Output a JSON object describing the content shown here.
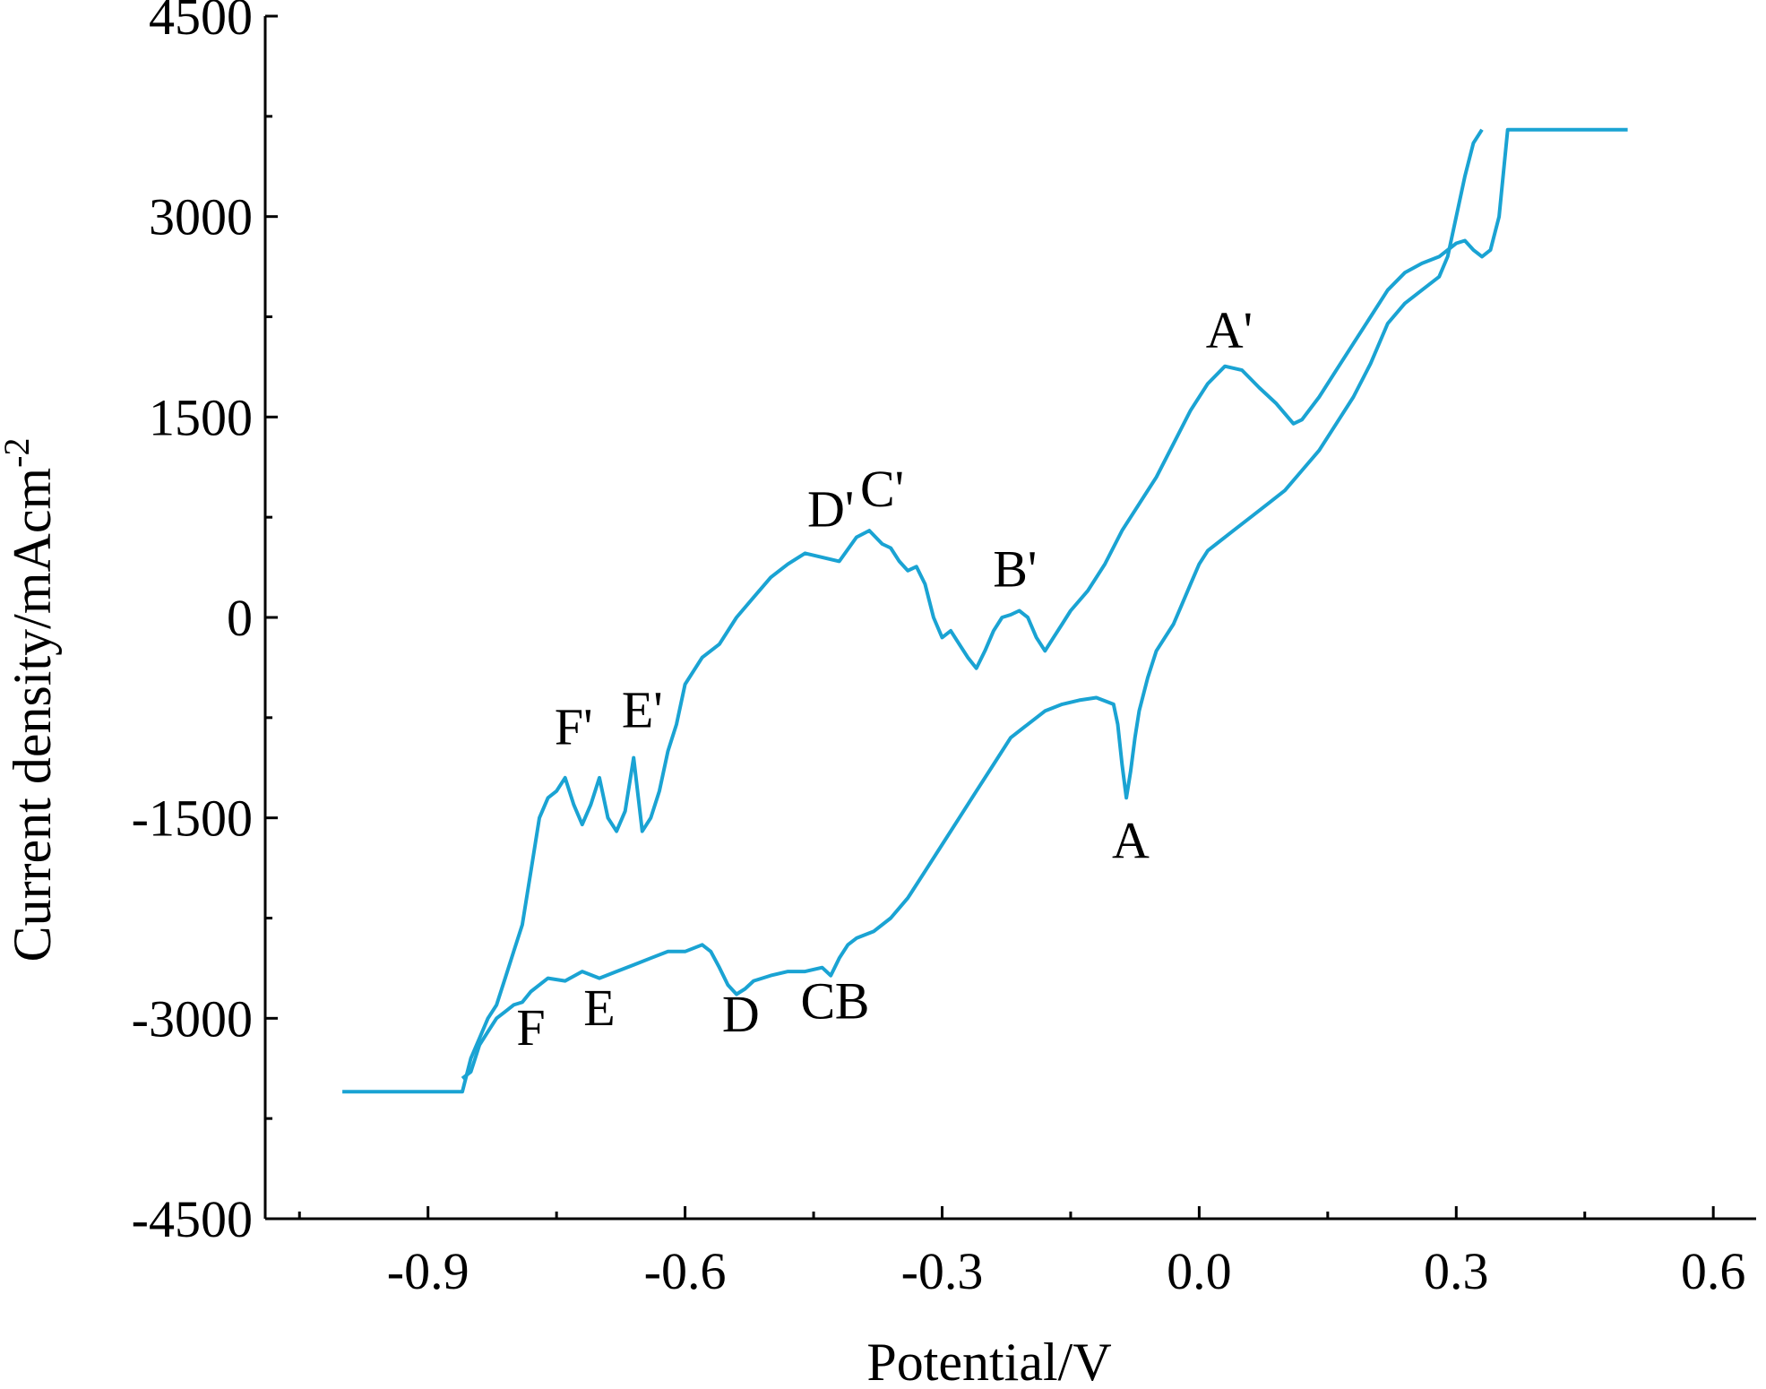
{
  "chart_data": {
    "type": "line",
    "title": "",
    "xlabel": "Potential/V",
    "ylabel": "Current density/mAcm",
    "ylabel_superscript": "-2",
    "xlim": [
      -1.09,
      0.65
    ],
    "ylim": [
      -4500,
      4500
    ],
    "x_ticks": [
      -0.9,
      -0.6,
      -0.3,
      0.0,
      0.3,
      0.6
    ],
    "x_tick_labels": [
      "-0.9",
      "-0.6",
      "-0.3",
      "0.0",
      "0.3",
      "0.6"
    ],
    "y_ticks": [
      -4500,
      -3000,
      -1500,
      0,
      1500,
      3000,
      4500
    ],
    "y_tick_labels": [
      "-4500",
      "-3000",
      "-1500",
      "0",
      "1500",
      "3000",
      "4500"
    ],
    "grid": false,
    "line_color": "#1aa3d3",
    "series": [
      {
        "x": [
          -1.0,
          -0.86,
          -0.85,
          -0.84,
          -0.83,
          -0.82,
          -0.81,
          -0.8,
          -0.79,
          -0.78,
          -0.77,
          -0.76,
          -0.75,
          -0.74,
          -0.73,
          -0.72,
          -0.71,
          -0.7,
          -0.69,
          -0.68,
          -0.67,
          -0.66,
          -0.65,
          -0.64,
          -0.63,
          -0.62,
          -0.61,
          -0.6,
          -0.58,
          -0.56,
          -0.54,
          -0.52,
          -0.5,
          -0.48,
          -0.46,
          -0.44,
          -0.42,
          -0.4,
          -0.385,
          -0.37,
          -0.36,
          -0.35,
          -0.34,
          -0.33,
          -0.32,
          -0.31,
          -0.3,
          -0.29,
          -0.28,
          -0.27,
          -0.26,
          -0.25,
          -0.24,
          -0.23,
          -0.22,
          -0.21,
          -0.2,
          -0.19,
          -0.18,
          -0.17,
          -0.16,
          -0.15,
          -0.13,
          -0.11,
          -0.09,
          -0.07,
          -0.05,
          -0.03,
          -0.01,
          0.01,
          0.03,
          0.05,
          0.07,
          0.09,
          0.11,
          0.12,
          0.14,
          0.16,
          0.18,
          0.2,
          0.22,
          0.24,
          0.26,
          0.28,
          0.3,
          0.31,
          0.32,
          0.33,
          0.34,
          0.35,
          0.36,
          0.38,
          0.4,
          0.45,
          0.5
        ],
        "y": [
          -3550,
          -3550,
          -3300,
          -3150,
          -3000,
          -2900,
          -2700,
          -2500,
          -2300,
          -1900,
          -1500,
          -1350,
          -1300,
          -1200,
          -1400,
          -1550,
          -1400,
          -1200,
          -1500,
          -1600,
          -1450,
          -1050,
          -1600,
          -1500,
          -1300,
          -1000,
          -800,
          -500,
          -300,
          -200,
          0,
          150,
          300,
          400,
          480,
          450,
          420,
          600,
          650,
          550,
          520,
          420,
          350,
          380,
          250,
          0,
          -150,
          -100,
          -200,
          -300,
          -380,
          -250,
          -100,
          0,
          20,
          50,
          0,
          -150,
          -250,
          -150,
          -50,
          50,
          200,
          400,
          650,
          850,
          1050,
          1300,
          1550,
          1750,
          1880,
          1850,
          1720,
          1600,
          1450,
          1480,
          1650,
          1850,
          2050,
          2250,
          2450,
          2580,
          2650,
          2700,
          2800,
          2820,
          2750,
          2700,
          2750,
          3000,
          3650,
          3650,
          3650,
          3650,
          3650
        ]
      },
      {
        "x": [
          -0.86,
          -0.85,
          -0.84,
          -0.83,
          -0.82,
          -0.81,
          -0.8,
          -0.79,
          -0.78,
          -0.77,
          -0.76,
          -0.74,
          -0.72,
          -0.7,
          -0.68,
          -0.66,
          -0.64,
          -0.62,
          -0.6,
          -0.58,
          -0.57,
          -0.56,
          -0.55,
          -0.54,
          -0.53,
          -0.52,
          -0.51,
          -0.5,
          -0.48,
          -0.46,
          -0.44,
          -0.43,
          -0.42,
          -0.41,
          -0.4,
          -0.38,
          -0.36,
          -0.34,
          -0.32,
          -0.3,
          -0.28,
          -0.26,
          -0.24,
          -0.22,
          -0.2,
          -0.18,
          -0.16,
          -0.14,
          -0.12,
          -0.1,
          -0.095,
          -0.09,
          -0.085,
          -0.08,
          -0.075,
          -0.07,
          -0.06,
          -0.05,
          -0.04,
          -0.03,
          -0.02,
          -0.01,
          0.0,
          0.01,
          0.02,
          0.04,
          0.06,
          0.08,
          0.1,
          0.12,
          0.14,
          0.16,
          0.18,
          0.2,
          0.22,
          0.24,
          0.26,
          0.28,
          0.29,
          0.3,
          0.31,
          0.32,
          0.33
        ],
        "y": [
          -3450,
          -3400,
          -3200,
          -3100,
          -3000,
          -2950,
          -2900,
          -2880,
          -2800,
          -2750,
          -2700,
          -2720,
          -2650,
          -2700,
          -2650,
          -2600,
          -2550,
          -2500,
          -2500,
          -2450,
          -2500,
          -2620,
          -2750,
          -2820,
          -2780,
          -2720,
          -2700,
          -2680,
          -2650,
          -2650,
          -2620,
          -2680,
          -2550,
          -2450,
          -2400,
          -2350,
          -2250,
          -2100,
          -1900,
          -1700,
          -1500,
          -1300,
          -1100,
          -900,
          -800,
          -700,
          -650,
          -620,
          -600,
          -650,
          -800,
          -1100,
          -1350,
          -1150,
          -900,
          -700,
          -450,
          -250,
          -150,
          -50,
          100,
          250,
          400,
          500,
          550,
          650,
          750,
          850,
          950,
          1100,
          1250,
          1450,
          1650,
          1900,
          2200,
          2350,
          2450,
          2550,
          2700,
          3000,
          3300,
          3550,
          3650
        ]
      }
    ],
    "annotations": [
      {
        "text": "A'",
        "x": 0.035,
        "y": 2020
      },
      {
        "text": "A",
        "x": -0.08,
        "y": -1800
      },
      {
        "text": "B'",
        "x": -0.215,
        "y": 230
      },
      {
        "text": "B",
        "x": -0.405,
        "y": -3000
      },
      {
        "text": "C'",
        "x": -0.37,
        "y": 830
      },
      {
        "text": "C",
        "x": -0.445,
        "y": -3000
      },
      {
        "text": "D'",
        "x": -0.43,
        "y": 680
      },
      {
        "text": "D",
        "x": -0.535,
        "y": -3100
      },
      {
        "text": "E'",
        "x": -0.65,
        "y": -820
      },
      {
        "text": "E",
        "x": -0.7,
        "y": -3050
      },
      {
        "text": "F'",
        "x": -0.73,
        "y": -950
      },
      {
        "text": "F",
        "x": -0.78,
        "y": -3200
      }
    ]
  }
}
